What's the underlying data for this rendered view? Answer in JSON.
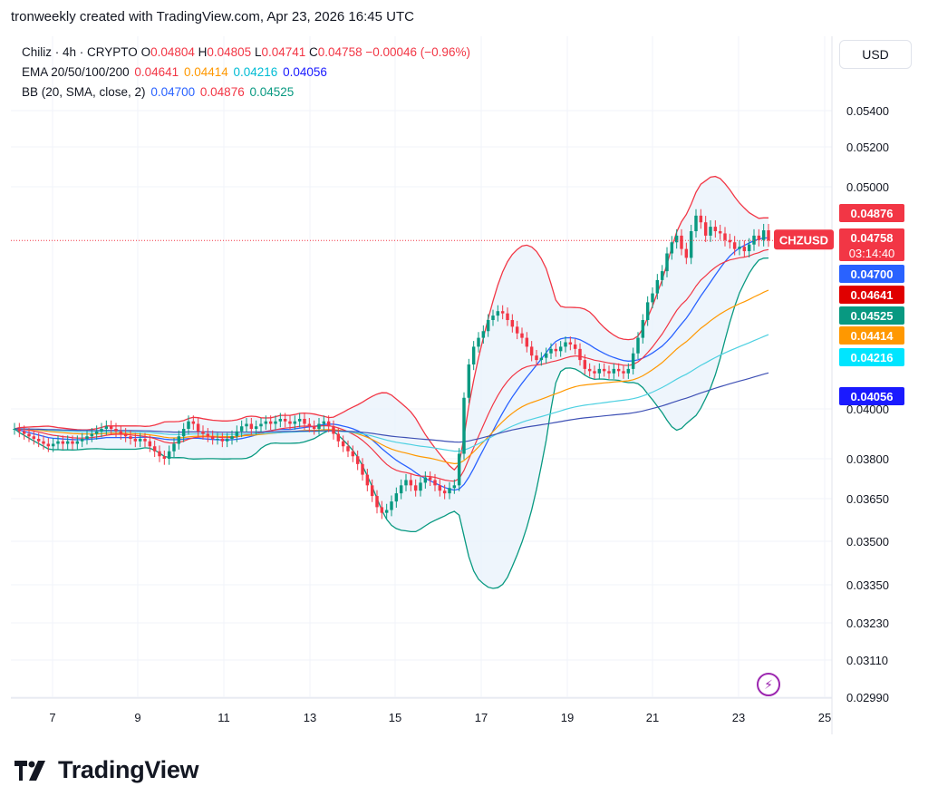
{
  "header": {
    "attribution": "tronweekly created with TradingView.com, Apr 23, 2026 16:45 UTC"
  },
  "legend": {
    "symbol_line": "Chiliz · 4h · CRYPTO",
    "ohlc": [
      {
        "k": "O",
        "v": "0.04804"
      },
      {
        "k": "H",
        "v": "0.04805"
      },
      {
        "k": "L",
        "v": "0.04741"
      },
      {
        "k": "C",
        "v": "0.04758"
      }
    ],
    "change": "−0.00046 (−0.96%)",
    "ema_label": "EMA 20/50/100/200",
    "ema_values": [
      "0.04641",
      "0.04414",
      "0.04216",
      "0.04056"
    ],
    "bb_label": "BB (20, SMA, close, 2)",
    "bb_values": [
      "0.04700",
      "0.04876",
      "0.04525"
    ]
  },
  "currency_button": "USD",
  "ticker_tag": "CHZUSD",
  "countdown": "03:14:40",
  "footer_logo_text": "TradingView",
  "colors": {
    "up": "#089981",
    "down": "#f23645",
    "ema20": "#f23645",
    "ema50": "#ff9800",
    "ema100": "#4dd0e1",
    "ema200": "#3f51b5",
    "bb_basis": "#2962ff",
    "bb_upper": "#f23645",
    "bb_lower": "#089981",
    "bb_fill": "#eaf2fb",
    "accent_purple": "#9c27b0"
  },
  "chart_data": {
    "type": "candlestick",
    "y_axis_ticks": [
      "0.05400",
      "0.05200",
      "0.05000",
      "0.04000",
      "0.03800",
      "0.03650",
      "0.03500",
      "0.03350",
      "0.03230",
      "0.03110",
      "0.02990"
    ],
    "x_axis_ticks": [
      "7",
      "9",
      "11",
      "13",
      "15",
      "17",
      "19",
      "21",
      "23",
      "25"
    ],
    "price_tags": [
      {
        "label": "0.04876",
        "color": "#f23645"
      },
      {
        "label": "0.04758",
        "color": "#f23645"
      },
      {
        "label": "0.04700",
        "color": "#2962ff"
      },
      {
        "label": "0.04641",
        "color": "#e00000"
      },
      {
        "label": "0.04525",
        "color": "#089981"
      },
      {
        "label": "0.04414",
        "color": "#ff9800"
      },
      {
        "label": "0.04216",
        "color": "#00e5ff"
      },
      {
        "label": "0.04056",
        "color": "#1a1aff"
      }
    ],
    "last_price": "0.04758",
    "closes": [
      0.0392,
      0.0391,
      0.039,
      0.0389,
      0.0388,
      0.0387,
      0.0386,
      0.0385,
      0.0386,
      0.0387,
      0.0386,
      0.0387,
      0.0386,
      0.0387,
      0.0388,
      0.0389,
      0.039,
      0.0391,
      0.0392,
      0.0393,
      0.0392,
      0.0391,
      0.039,
      0.0389,
      0.0388,
      0.0387,
      0.0388,
      0.0387,
      0.0385,
      0.0383,
      0.0381,
      0.038,
      0.0383,
      0.0386,
      0.0389,
      0.0392,
      0.0395,
      0.0394,
      0.0391,
      0.039,
      0.0389,
      0.0388,
      0.0388,
      0.0387,
      0.0388,
      0.0389,
      0.0391,
      0.0393,
      0.0394,
      0.0392,
      0.0393,
      0.0394,
      0.0395,
      0.0394,
      0.0395,
      0.0396,
      0.0395,
      0.0394,
      0.0395,
      0.0396,
      0.0394,
      0.0393,
      0.0392,
      0.0394,
      0.0395,
      0.0393,
      0.039,
      0.0387,
      0.0385,
      0.0383,
      0.0381,
      0.0378,
      0.0374,
      0.037,
      0.0366,
      0.0362,
      0.036,
      0.0361,
      0.0364,
      0.0367,
      0.037,
      0.0372,
      0.037,
      0.0368,
      0.0371,
      0.0373,
      0.0372,
      0.037,
      0.0368,
      0.0367,
      0.0369,
      0.037,
      0.0382,
      0.0405,
      0.042,
      0.0428,
      0.0432,
      0.0435,
      0.044,
      0.0442,
      0.0444,
      0.0443,
      0.044,
      0.0437,
      0.0434,
      0.0432,
      0.0428,
      0.0424,
      0.0422,
      0.0423,
      0.0425,
      0.0427,
      0.0426,
      0.0428,
      0.043,
      0.0429,
      0.0427,
      0.0422,
      0.0418,
      0.0417,
      0.0416,
      0.0418,
      0.0417,
      0.0416,
      0.0418,
      0.0417,
      0.0416,
      0.0418,
      0.0425,
      0.0432,
      0.044,
      0.0448,
      0.0452,
      0.0458,
      0.0462,
      0.047,
      0.0475,
      0.0478,
      0.0472,
      0.0468,
      0.048,
      0.0487,
      0.0484,
      0.0478,
      0.0482,
      0.048,
      0.0479,
      0.0476,
      0.0475,
      0.0472,
      0.0473,
      0.0471,
      0.0474,
      0.0478,
      0.0476,
      0.04804,
      0.04758
    ]
  }
}
